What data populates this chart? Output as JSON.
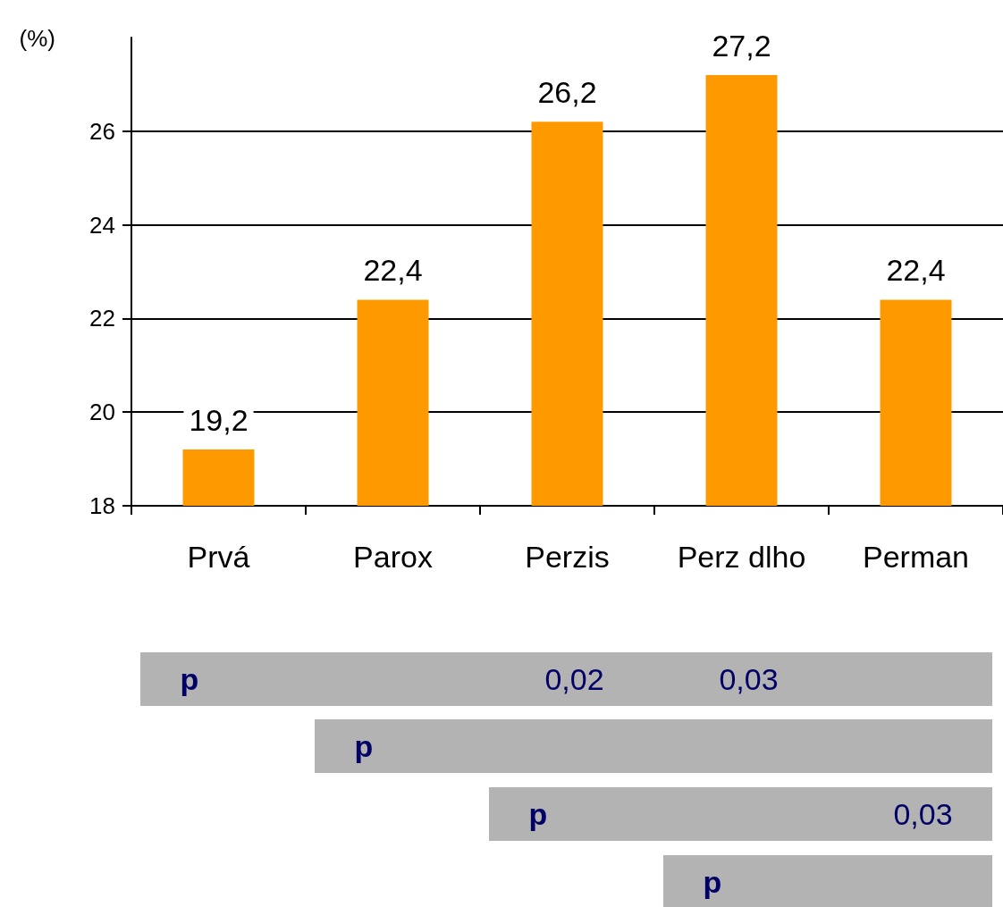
{
  "chart_data": {
    "type": "bar",
    "ylabel": "(%)",
    "categories": [
      "Prvá",
      "Parox",
      "Perzis",
      "Perz dlho",
      "Perman"
    ],
    "values": [
      19.2,
      22.4,
      26.2,
      27.2,
      22.4
    ],
    "value_labels": [
      "19,2",
      "22,4",
      "26,2",
      "27,2",
      "22,4"
    ],
    "color": "#ff9900",
    "ylim": [
      18,
      28
    ],
    "yticks": [
      18,
      20,
      22,
      24,
      26
    ],
    "grid": "y",
    "annotations": [
      "p",
      "0,02",
      "0,03",
      "p",
      "p",
      "0,03",
      "p"
    ]
  }
}
